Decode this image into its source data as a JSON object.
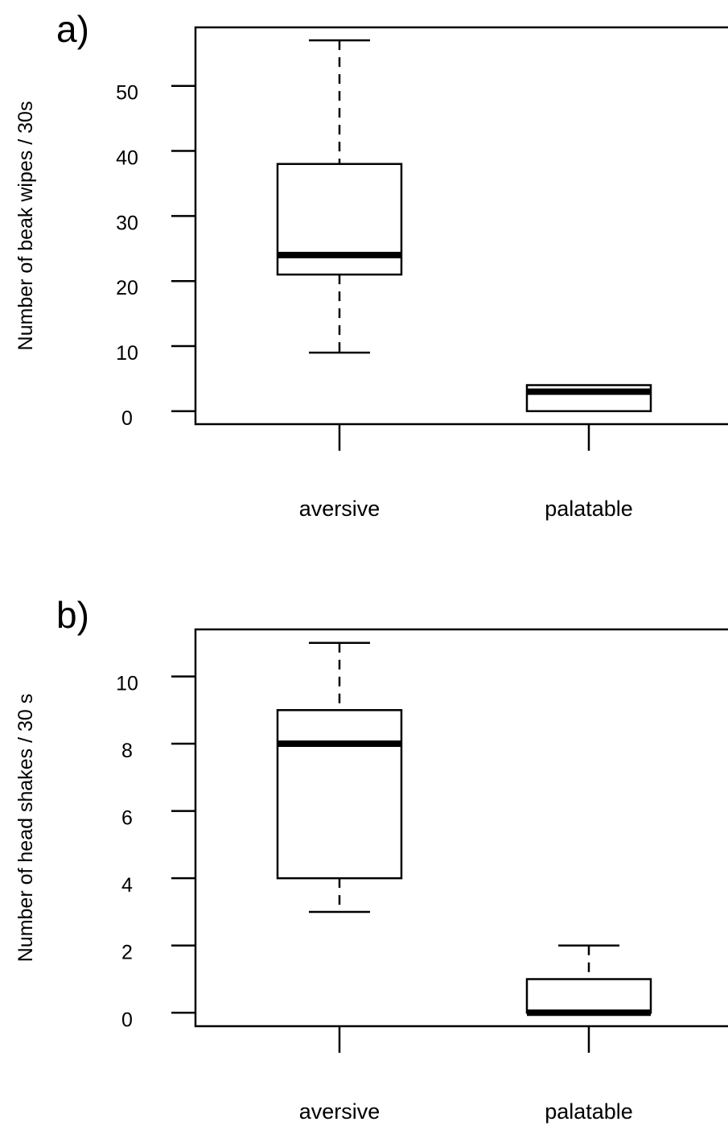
{
  "chart_data": [
    {
      "type": "boxplot",
      "panel_label": "a)",
      "ylabel": "Number of beak wipes / 30s",
      "ylim": [
        -2,
        59
      ],
      "yticks": [
        0,
        10,
        20,
        30,
        40,
        50
      ],
      "categories": [
        "aversive",
        "palatable"
      ],
      "boxes": [
        {
          "category": "aversive",
          "min": 9,
          "q1": 21,
          "median": 24,
          "q3": 38,
          "max": 57
        },
        {
          "category": "palatable",
          "min": 0,
          "q1": 0,
          "median": 3,
          "q3": 4,
          "max": 4
        }
      ]
    },
    {
      "type": "boxplot",
      "panel_label": "b)",
      "ylabel": "Number of head shakes / 30 s",
      "ylim": [
        -0.4,
        11.4
      ],
      "yticks": [
        0,
        2,
        4,
        6,
        8,
        10
      ],
      "categories": [
        "aversive",
        "palatable"
      ],
      "boxes": [
        {
          "category": "aversive",
          "min": 3,
          "q1": 4,
          "median": 8,
          "q3": 9,
          "max": 11
        },
        {
          "category": "palatable",
          "min": 0,
          "q1": 0,
          "median": 0,
          "q3": 1,
          "max": 2
        }
      ]
    }
  ]
}
